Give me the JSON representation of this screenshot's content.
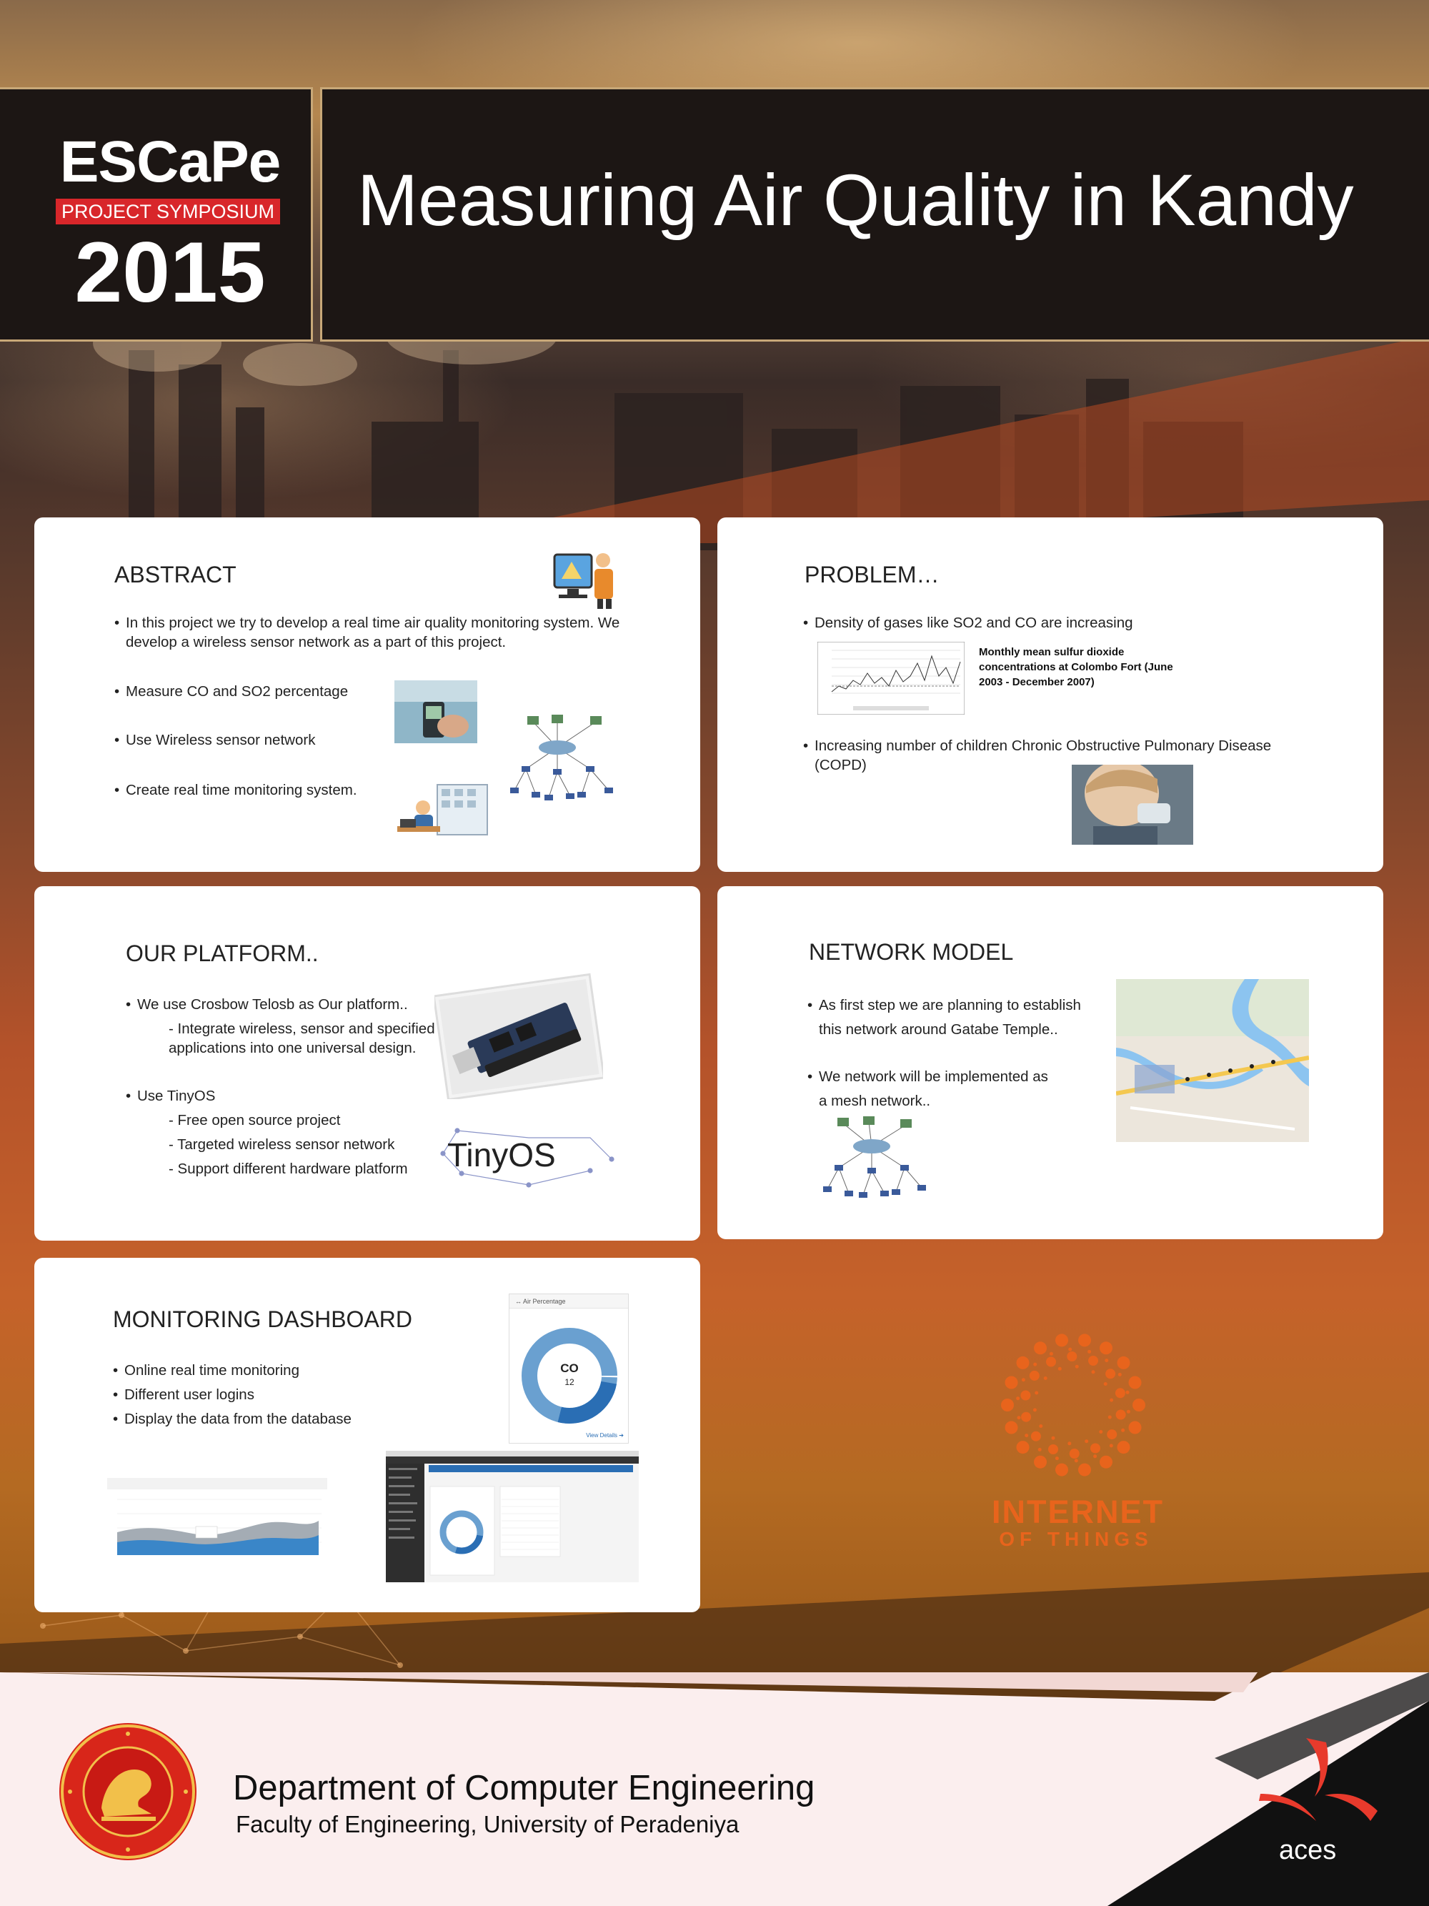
{
  "header": {
    "logo_main": "ESCaPe",
    "logo_tag": "PROJECT SYMPOSIUM",
    "logo_year": "2015",
    "title": "Measuring Air Quality in Kandy"
  },
  "abstract": {
    "title": "ABSTRACT",
    "bullets": [
      "In this project we try to develop a real time air quality monitoring system. We develop a wireless sensor network as a part of this  project.",
      "Measure CO and SO2 percentage",
      "Use Wireless sensor network",
      "Create real time monitoring system."
    ]
  },
  "problem": {
    "title": "PROBLEM…",
    "bullets": [
      "Density of gases like SO2 and CO are increasing",
      "Increasing number of children Chronic Obstructive Pulmonary Disease (COPD)"
    ],
    "chart_caption": "Monthly mean sulfur dioxide concentrations at Colombo Fort (June 2003 - December 2007)"
  },
  "platform": {
    "title": "OUR PLATFORM..",
    "bullets": [
      "We use Crosbow Telosb as Our platform..",
      "Use TinyOS"
    ],
    "sub_platform": [
      "- Integrate wireless, sensor and specified  requirements  for applications into one  universal design."
    ],
    "sub_tinyos": [
      "- Free open source project",
      "- Targeted wireless sensor network",
      "- Support different hardware platform"
    ],
    "tinyos_logo": "TinyOS"
  },
  "network": {
    "title": "NETWORK MODEL",
    "bullets": [
      "As first step we are planning to establish this network around Gatabe Temple..",
      "We network will be implemented as a mesh network.."
    ]
  },
  "dashboard": {
    "title": "MONITORING DASHBOARD",
    "bullets": [
      "Online real time monitoring",
      "Different user logins",
      "Display the data from the database"
    ],
    "widget_header": "Air Percentage",
    "gauge_label": "CO",
    "gauge_value": "12",
    "widget_link": "View Details",
    "colors": {
      "donut_dark": "#2a6eb4",
      "donut_light": "#6aa0d0"
    }
  },
  "iot": {
    "line1": "INTERNET",
    "line2": "OF THINGS",
    "color": "#e8641c"
  },
  "footer": {
    "dept": "Department of Computer Engineering",
    "faculty": "Faculty of Engineering, University of Peradeniya",
    "aces": "aces"
  }
}
